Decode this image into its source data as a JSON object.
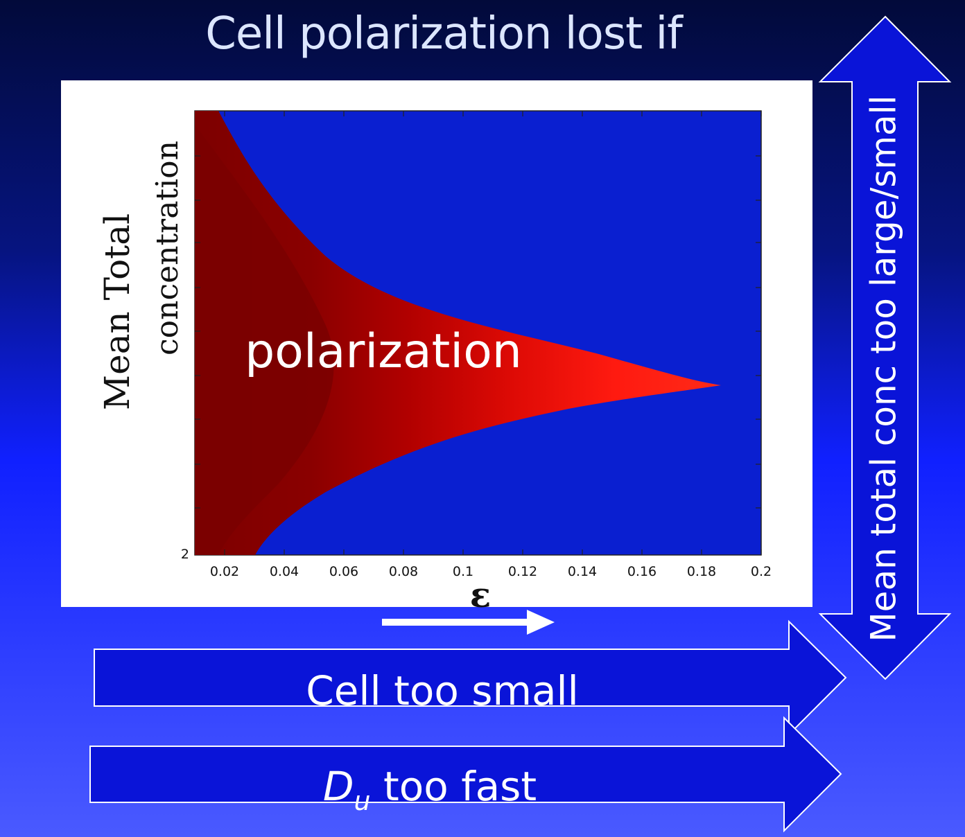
{
  "slide": {
    "title": "Cell polarization lost if",
    "region_label": "polarization",
    "vertical_arrow_label": "Mean total conc too large/small",
    "arrow_cell_small_label": "Cell too small",
    "arrow_du_symbol": "D",
    "arrow_du_subscript": "u",
    "arrow_du_rest": " too fast"
  },
  "colors": {
    "background_top": "#020a3a",
    "background_bottom": "#4a5aff",
    "plot_blue": "#0a1fd0",
    "polar_dark": "#7d0000",
    "polar_bright": "#ff1a10",
    "arrow_fill": "#0a14d8",
    "arrow_stroke": "#ffffff"
  },
  "chart_data": {
    "type": "heatmap",
    "title": "",
    "xlabel": "ε",
    "ylabel_line1": "Mean Total",
    "ylabel_line2": "concentration",
    "xlim": [
      0.01,
      0.2
    ],
    "x_ticks": [
      0.02,
      0.04,
      0.06,
      0.08,
      0.1,
      0.12,
      0.14,
      0.16,
      0.18,
      0.2
    ],
    "x_tick_labels": [
      "0.02",
      "0.04",
      "0.06",
      "0.08",
      "0.1",
      "0.12",
      "0.14",
      "0.16",
      "0.18",
      "0.2"
    ],
    "y_tick_labels": [
      "2"
    ],
    "region": {
      "name": "polarization",
      "tip_epsilon": 0.187,
      "upper_boundary_epsilon": [
        0.018,
        0.026,
        0.04,
        0.06,
        0.08,
        0.1,
        0.12,
        0.14,
        0.16,
        0.187
      ],
      "lower_boundary_epsilon": [
        0.03,
        0.04,
        0.06,
        0.08,
        0.1,
        0.12,
        0.14,
        0.16,
        0.187
      ]
    }
  }
}
